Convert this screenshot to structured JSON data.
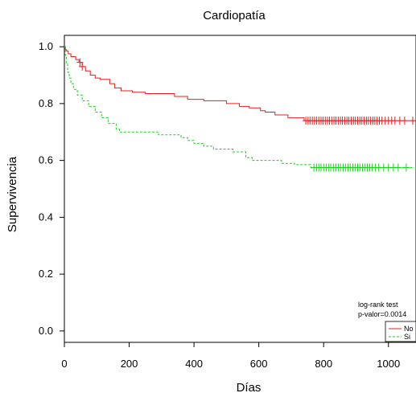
{
  "chart_data": {
    "type": "line",
    "title": "Cardiopatía",
    "xlabel": "Días",
    "ylabel": "Supervivencia",
    "xlim": [
      0,
      1085
    ],
    "ylim": [
      -0.04,
      1.04
    ],
    "x_ticks": [
      {
        "value": 0,
        "label": "0"
      },
      {
        "value": 200,
        "label": "200"
      },
      {
        "value": 400,
        "label": "400"
      },
      {
        "value": 600,
        "label": "600"
      },
      {
        "value": 800,
        "label": "800"
      },
      {
        "value": 1000,
        "label": "1000"
      }
    ],
    "y_ticks": [
      {
        "value": 0.0,
        "label": "0.0"
      },
      {
        "value": 0.2,
        "label": "0.2"
      },
      {
        "value": 0.4,
        "label": "0.4"
      },
      {
        "value": 0.6,
        "label": "0.6"
      },
      {
        "value": 0.8,
        "label": "0.8"
      },
      {
        "value": 1.0,
        "label": "1.0"
      }
    ],
    "annotations": [
      "log-rank test",
      "p-valor=0.0014"
    ],
    "legend_position": "bottom-right",
    "series": [
      {
        "name": "No",
        "color": "#e0201f",
        "line_style": "solid",
        "step_points": [
          [
            0,
            1.0
          ],
          [
            3,
            0.99
          ],
          [
            7,
            0.985
          ],
          [
            12,
            0.975
          ],
          [
            20,
            0.965
          ],
          [
            35,
            0.955
          ],
          [
            45,
            0.945
          ],
          [
            55,
            0.93
          ],
          [
            65,
            0.915
          ],
          [
            80,
            0.9
          ],
          [
            95,
            0.89
          ],
          [
            110,
            0.885
          ],
          [
            140,
            0.87
          ],
          [
            155,
            0.855
          ],
          [
            175,
            0.845
          ],
          [
            210,
            0.84
          ],
          [
            250,
            0.835
          ],
          [
            340,
            0.825
          ],
          [
            380,
            0.815
          ],
          [
            430,
            0.81
          ],
          [
            500,
            0.8
          ],
          [
            540,
            0.79
          ],
          [
            570,
            0.785
          ],
          [
            605,
            0.775
          ],
          [
            620,
            0.77
          ],
          [
            650,
            0.76
          ],
          [
            690,
            0.75
          ],
          [
            740,
            0.74
          ],
          [
            1080,
            0.74
          ]
        ],
        "censor_x": [
          48,
          55,
          745,
          752,
          758,
          765,
          772,
          778,
          785,
          792,
          798,
          805,
          812,
          818,
          825,
          832,
          838,
          845,
          852,
          858,
          865,
          872,
          878,
          885,
          892,
          898,
          905,
          912,
          918,
          925,
          932,
          938,
          945,
          952,
          958,
          965,
          972,
          980,
          990,
          1000,
          1010,
          1020,
          1035,
          1050,
          1075
        ]
      },
      {
        "name": "Si",
        "color": "#22cc22",
        "line_style": "dashed",
        "step_points": [
          [
            0,
            1.0
          ],
          [
            3,
            0.97
          ],
          [
            6,
            0.94
          ],
          [
            10,
            0.91
          ],
          [
            15,
            0.89
          ],
          [
            20,
            0.87
          ],
          [
            28,
            0.85
          ],
          [
            40,
            0.83
          ],
          [
            55,
            0.81
          ],
          [
            75,
            0.79
          ],
          [
            95,
            0.77
          ],
          [
            115,
            0.75
          ],
          [
            135,
            0.73
          ],
          [
            160,
            0.71
          ],
          [
            170,
            0.7
          ],
          [
            290,
            0.69
          ],
          [
            340,
            0.69
          ],
          [
            360,
            0.68
          ],
          [
            380,
            0.67
          ],
          [
            400,
            0.66
          ],
          [
            430,
            0.65
          ],
          [
            460,
            0.64
          ],
          [
            520,
            0.63
          ],
          [
            560,
            0.61
          ],
          [
            580,
            0.6
          ],
          [
            670,
            0.59
          ],
          [
            710,
            0.585
          ],
          [
            760,
            0.575
          ],
          [
            1080,
            0.575
          ]
        ],
        "censor_x": [
          770,
          778,
          785,
          792,
          800,
          808,
          815,
          822,
          830,
          838,
          845,
          852,
          860,
          868,
          875,
          882,
          890,
          898,
          905,
          912,
          920,
          928,
          935,
          942,
          950,
          960,
          970,
          985,
          1000,
          1015,
          1030,
          1055
        ]
      }
    ]
  }
}
